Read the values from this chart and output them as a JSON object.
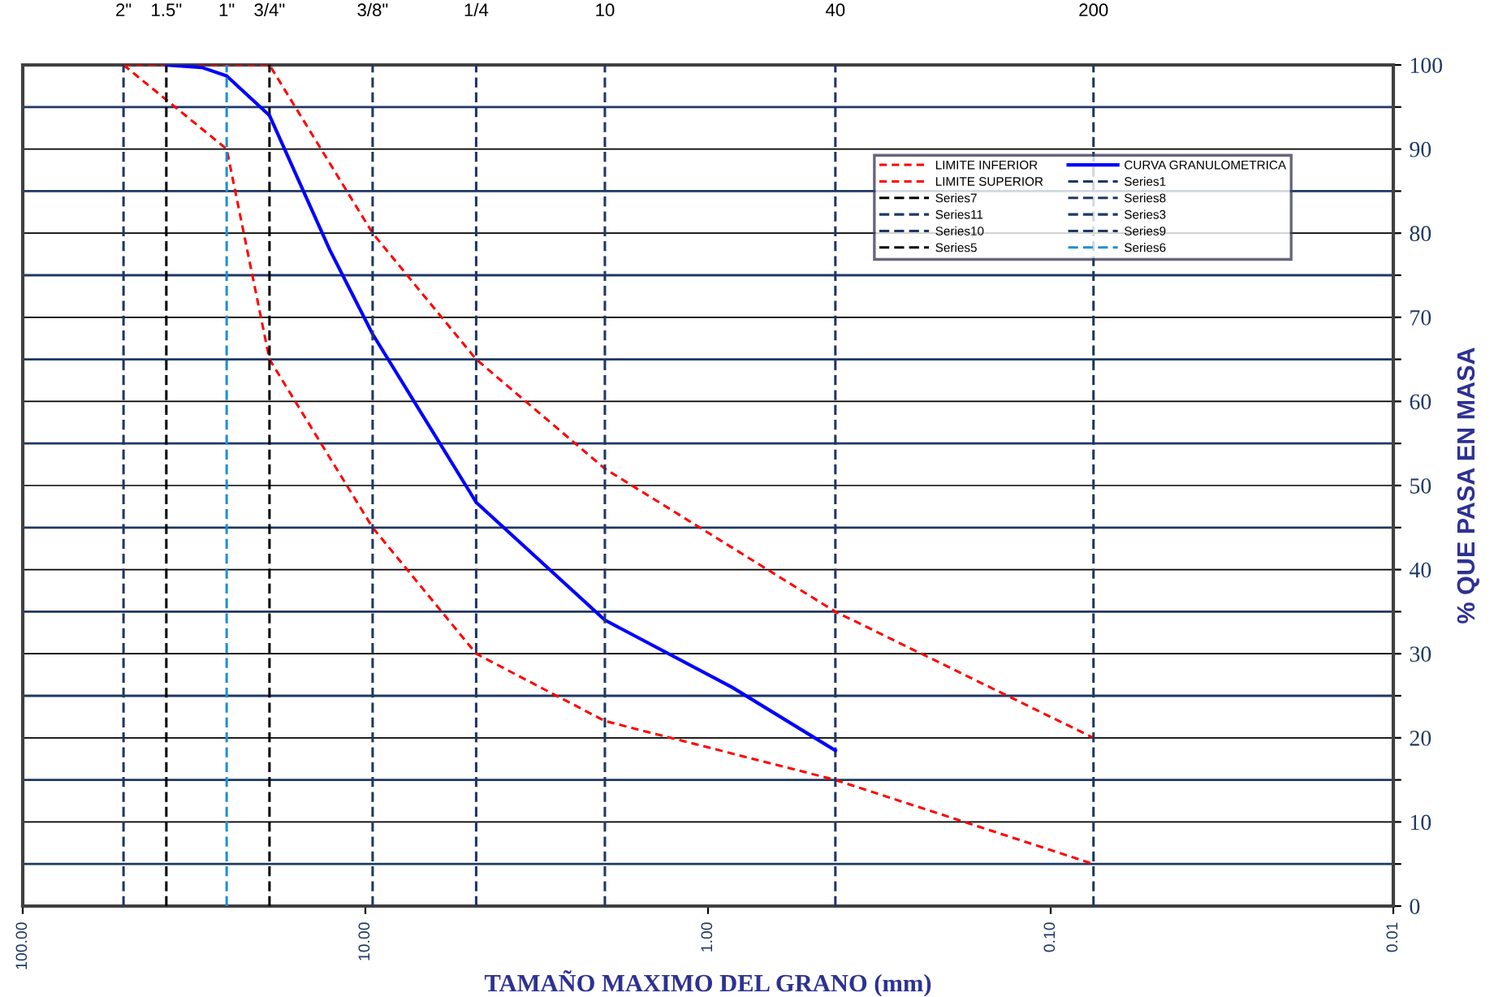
{
  "chart_data": {
    "type": "line",
    "xlabel": "TAMAÑO MAXIMO DEL GRANO (mm)",
    "ylabel": "% QUE PASA EN MASA",
    "log": "x",
    "xlim": [
      100,
      0.01
    ],
    "xticks": [
      {
        "value": 100,
        "label": "100.00"
      },
      {
        "value": 10,
        "label": "10.00"
      },
      {
        "value": 1,
        "label": "1.00"
      },
      {
        "value": 0.1,
        "label": "0.10"
      },
      {
        "value": 0.01,
        "label": "0.01"
      }
    ],
    "annotations": [
      {
        "text": "2\"",
        "x": 50.8,
        "y": 100
      },
      {
        "text": "1.5\"",
        "x": 38.1,
        "y": 100
      },
      {
        "text": "1\"",
        "x": 25.4,
        "y": 100
      },
      {
        "text": "3/4\"",
        "x": 19.05,
        "y": 100
      },
      {
        "text": "3/8\"",
        "x": 9.525,
        "y": 100
      },
      {
        "text": "1/4",
        "x": 4.75,
        "y": 100
      },
      {
        "text": "10",
        "x": 2.0,
        "y": 100
      },
      {
        "text": "40",
        "x": 0.425,
        "y": 100
      },
      {
        "text": "200",
        "x": 0.075,
        "y": 100
      }
    ],
    "ylim": [
      0,
      100
    ],
    "yticks": [
      0,
      {
        "value": 5,
        "label": null
      },
      10,
      {
        "value": 15,
        "label": null
      },
      20,
      {
        "value": 25,
        "label": null
      },
      30,
      {
        "value": 35,
        "label": null
      },
      40,
      {
        "value": 45,
        "label": null
      },
      50,
      {
        "value": 55,
        "label": null
      },
      60,
      {
        "value": 65,
        "label": null
      },
      70,
      {
        "value": 75,
        "label": null
      },
      80,
      {
        "value": 85,
        "label": null
      },
      90,
      {
        "value": 95,
        "label": null
      },
      100
    ],
    "grid": "y",
    "legend": "top right",
    "marker": "none",
    "series": [
      {
        "name": "LIMITE INFERIOR",
        "color": "#ff0000",
        "line_style": "dotted",
        "x": [
          50.8,
          25.4,
          19.05,
          9.525,
          4.75,
          2.0,
          0.425,
          0.075
        ],
        "values": [
          100,
          90,
          65,
          45,
          30,
          22,
          15,
          5
        ]
      },
      {
        "name": "LIMITE SUPERIOR",
        "color": "#ff0000",
        "line_style": "dotted",
        "x": [
          50.8,
          19.05,
          9.525,
          4.75,
          2.0,
          0.425,
          0.075
        ],
        "values": [
          100,
          100,
          80,
          65,
          52,
          35,
          20
        ]
      },
      {
        "name": "Series7",
        "color": "#000000",
        "line_style": "dashed",
        "x": [
          38.1,
          38.1
        ],
        "values": [
          0,
          100
        ]
      },
      {
        "name": "Series11",
        "color": "#1f3864",
        "line_style": "dashed",
        "x": [
          4.75,
          4.75
        ],
        "values": [
          0,
          100
        ]
      },
      {
        "name": "Series10",
        "color": "#1f3864",
        "line_style": "dashed",
        "x": [
          0.425,
          0.425
        ],
        "values": [
          0,
          100
        ]
      },
      {
        "name": "Series5",
        "color": "#000000",
        "line_style": "dashed",
        "x": [
          19.05,
          19.05
        ],
        "values": [
          0,
          100
        ]
      },
      {
        "name": "CURVA GRANULOMETRICA",
        "color": "#0000ff",
        "line_style": "solid",
        "x": [
          38.1,
          30,
          25.4,
          19.05,
          12.7,
          9.525,
          4.75,
          2.0,
          0.85,
          0.425
        ],
        "values": [
          100,
          99.7,
          98.7,
          94,
          78,
          68,
          48,
          34,
          26,
          18.5
        ]
      },
      {
        "name": "Series1",
        "color": "#1f3864",
        "line_style": "dashed",
        "x": [
          50.8,
          50.8
        ],
        "values": [
          0,
          100
        ]
      },
      {
        "name": "Series8",
        "color": "#1f3864",
        "line_style": "dashed",
        "x": [
          9.525,
          9.525
        ],
        "values": [
          0,
          100
        ]
      },
      {
        "name": "Series3",
        "color": "#1f3864",
        "line_style": "dashed",
        "x": [
          2.0,
          2.0
        ],
        "values": [
          0,
          100
        ]
      },
      {
        "name": "Series9",
        "color": "#1f3864",
        "line_style": "dashed",
        "x": [
          0.075,
          0.075
        ],
        "values": [
          0,
          100
        ]
      },
      {
        "name": "Series6",
        "color": "#1e90d6",
        "line_style": "dashed",
        "x": [
          25.4,
          25.4
        ],
        "values": [
          0,
          100
        ]
      }
    ]
  }
}
